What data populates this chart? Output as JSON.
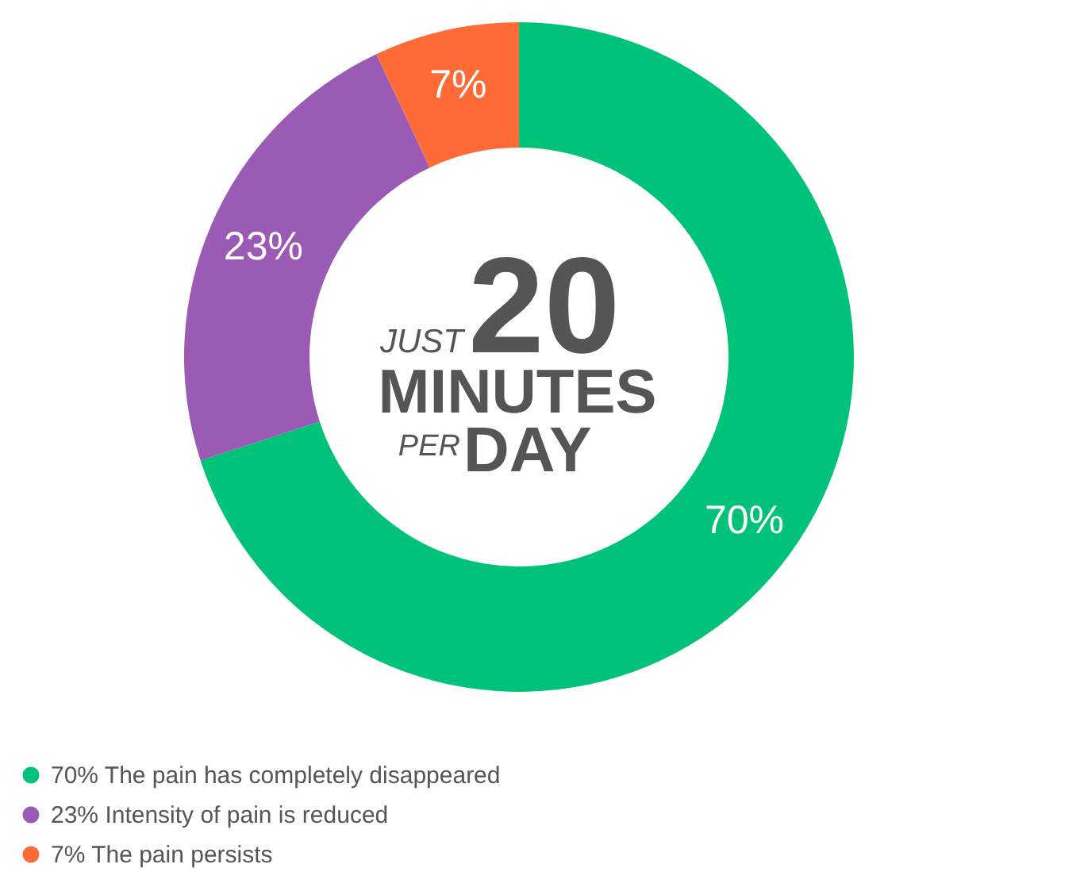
{
  "chart_data": {
    "type": "donut",
    "categories": [
      "The pain has completely disappeared",
      "Intensity of pain is reduced",
      "The pain persists"
    ],
    "values": [
      70,
      23,
      7
    ],
    "colors": [
      "#00c278",
      "#9b5bb5",
      "#fe6b36"
    ],
    "value_labels": [
      "70%",
      "23%",
      "7%"
    ],
    "legend": "bottom left",
    "annotations": [
      "JUST",
      "20",
      "MINUTES",
      "PER",
      "DAY"
    ]
  }
}
